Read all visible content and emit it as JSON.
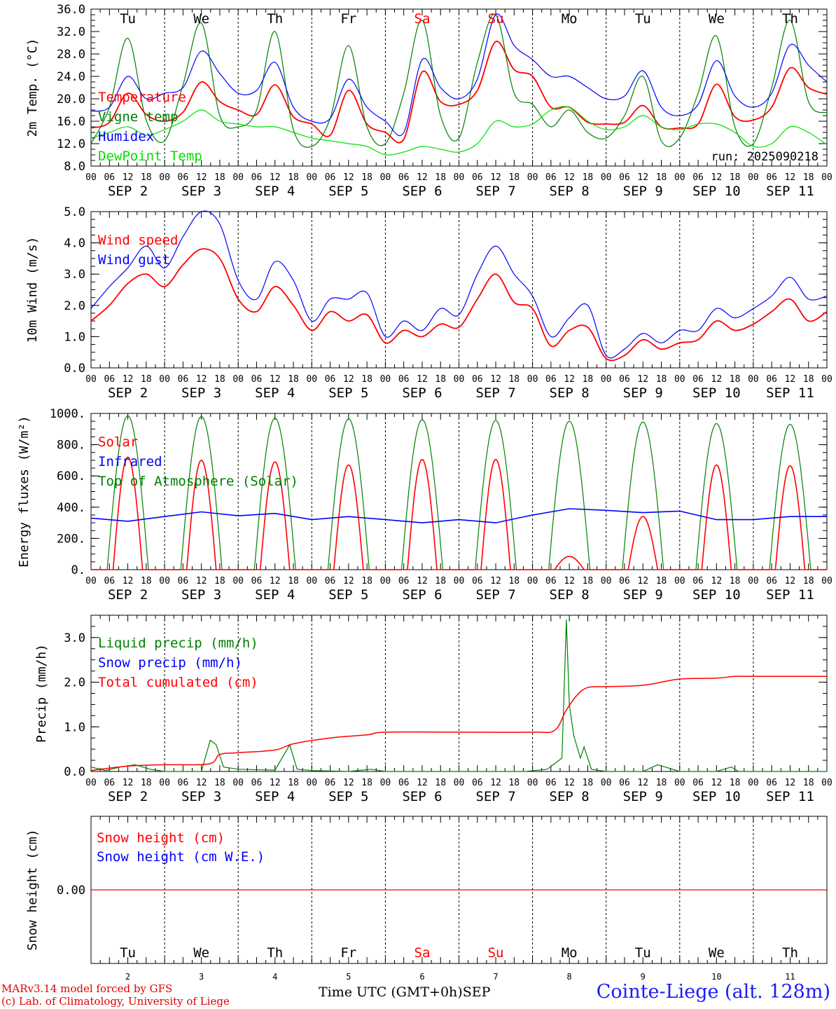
{
  "days": {
    "weekdays": [
      "Tu",
      "We",
      "Th",
      "Fr",
      "Sa",
      "Su",
      "Mo",
      "Tu",
      "We",
      "Th"
    ],
    "weekend_flags": [
      false,
      false,
      false,
      false,
      true,
      true,
      false,
      false,
      false,
      false
    ],
    "day_numbers": [
      "2",
      "3",
      "4",
      "5",
      "6",
      "7",
      "8",
      "9",
      "10",
      "11"
    ],
    "month_day_labels": [
      "SEP  2",
      "SEP  3",
      "SEP  4",
      "SEP  5",
      "SEP  6",
      "SEP  7",
      "SEP  8",
      "SEP  9",
      "SEP 10",
      "SEP 11"
    ],
    "hour_ticks": [
      "00",
      "06",
      "12",
      "18"
    ],
    "end_tick": "00"
  },
  "colors": {
    "red": "#ff0000",
    "blue": "#0000ff",
    "green": "#008000",
    "lightgreen": "#00e000",
    "weekend": "#ff0000"
  },
  "chart_data": [
    {
      "id": "temperature",
      "type": "line",
      "ylabel": "2m Temp. (°C)",
      "ylim": [
        8.0,
        36.0
      ],
      "yticks": [
        "8.0",
        "12.0",
        "16.0",
        "20.0",
        "24.0",
        "28.0",
        "32.0",
        "36.0"
      ],
      "run_label": "run: 2025090218",
      "series": [
        {
          "name": "Temperature",
          "color": "red",
          "x": [
            0,
            0.25,
            0.5,
            0.75,
            1,
            1.25,
            1.5,
            1.75,
            2,
            2.25,
            2.5,
            2.75,
            3,
            3.25,
            3.5,
            3.75,
            4,
            4.25,
            4.5,
            4.75,
            5,
            5.25,
            5.5,
            5.75,
            6,
            6.25,
            6.5,
            6.75,
            7,
            7.25,
            7.5,
            7.75,
            8,
            8.25,
            8.5,
            8.75,
            9,
            9.25,
            9.5,
            9.75,
            10
          ],
          "y": [
            14.8,
            15.8,
            21.0,
            17.2,
            16.0,
            17.6,
            23.0,
            19.5,
            18.0,
            17.2,
            22.5,
            16.8,
            15.5,
            13.5,
            21.5,
            15.5,
            14.0,
            12.8,
            24.8,
            19.5,
            19.0,
            21.5,
            30.2,
            25.2,
            24.0,
            18.5,
            18.5,
            15.8,
            15.5,
            15.8,
            18.8,
            15.0,
            14.8,
            15.5,
            22.6,
            16.8,
            16.2,
            18.5,
            25.5,
            22.0,
            20.8
          ]
        },
        {
          "name": "Vigne temp",
          "color": "green",
          "x": [
            0,
            0.25,
            0.5,
            0.75,
            1,
            1.25,
            1.5,
            1.75,
            2,
            2.25,
            2.5,
            2.75,
            3,
            3.25,
            3.5,
            3.75,
            4,
            4.25,
            4.5,
            4.75,
            5,
            5.25,
            5.5,
            5.75,
            6,
            6.25,
            6.5,
            6.75,
            7,
            7.25,
            7.5,
            7.75,
            8,
            8.25,
            8.5,
            8.75,
            9,
            9.25,
            9.5,
            9.75,
            10
          ],
          "y": [
            12.0,
            18.5,
            30.8,
            16.2,
            12.5,
            22.5,
            33.5,
            17.0,
            15.0,
            18.0,
            32.0,
            14.5,
            11.5,
            16.5,
            29.5,
            15.0,
            12.0,
            21.0,
            34.0,
            17.0,
            13.0,
            26.5,
            35.0,
            21.0,
            19.0,
            15.0,
            18.0,
            14.0,
            13.0,
            17.0,
            24.0,
            12.5,
            13.0,
            21.0,
            31.2,
            15.0,
            12.0,
            22.0,
            34.0,
            19.5,
            17.5
          ]
        },
        {
          "name": "Humidex",
          "color": "blue",
          "x": [
            0,
            0.25,
            0.5,
            0.75,
            1,
            1.25,
            1.5,
            1.75,
            2,
            2.25,
            2.5,
            2.75,
            3,
            3.25,
            3.5,
            3.75,
            4,
            4.25,
            4.5,
            4.75,
            5,
            5.25,
            5.5,
            5.75,
            6,
            6.25,
            6.5,
            6.75,
            7,
            7.25,
            7.5,
            7.75,
            8,
            8.25,
            8.5,
            8.75,
            9,
            9.25,
            9.5,
            9.75,
            10
          ],
          "y": [
            17.8,
            18.5,
            24.0,
            20.0,
            21.0,
            22.0,
            28.5,
            24.5,
            21.0,
            21.5,
            26.5,
            18.5,
            16.0,
            16.5,
            23.5,
            18.5,
            16.0,
            14.0,
            27.0,
            22.0,
            20.0,
            23.5,
            35.0,
            29.5,
            27.0,
            24.0,
            24.0,
            22.0,
            20.0,
            20.5,
            25.0,
            18.5,
            17.0,
            19.0,
            26.8,
            20.5,
            18.5,
            21.0,
            29.6,
            26.0,
            23.0
          ]
        },
        {
          "name": "DewPoint Temp",
          "color": "lightgreen",
          "x": [
            0,
            0.25,
            0.5,
            0.75,
            1,
            1.25,
            1.5,
            1.75,
            2,
            2.25,
            2.5,
            2.75,
            3,
            3.25,
            3.5,
            3.75,
            4,
            4.25,
            4.5,
            4.75,
            5,
            5.25,
            5.5,
            5.75,
            6,
            6.25,
            6.5,
            6.75,
            7,
            7.25,
            7.5,
            7.75,
            8,
            8.25,
            8.5,
            8.75,
            9,
            9.25,
            9.5,
            9.75,
            10
          ],
          "y": [
            13.0,
            14.0,
            15.0,
            13.5,
            14.5,
            16.0,
            18.0,
            16.0,
            15.5,
            15.0,
            15.0,
            14.0,
            13.0,
            12.5,
            12.0,
            11.5,
            10.0,
            10.5,
            11.5,
            11.0,
            10.5,
            12.0,
            16.0,
            15.0,
            15.5,
            18.0,
            18.5,
            16.0,
            14.5,
            15.0,
            17.0,
            15.0,
            14.5,
            15.5,
            15.5,
            14.0,
            11.5,
            12.0,
            15.0,
            14.0,
            11.8
          ]
        }
      ]
    },
    {
      "id": "wind",
      "type": "line",
      "ylabel": "10m Wind (m/s)",
      "ylim": [
        0.0,
        5.0
      ],
      "yticks": [
        "0.0",
        "1.0",
        "2.0",
        "3.0",
        "4.0",
        "5.0"
      ],
      "series": [
        {
          "name": "Wind speed",
          "color": "red",
          "x": [
            0,
            0.25,
            0.5,
            0.75,
            1,
            1.25,
            1.5,
            1.75,
            2,
            2.25,
            2.5,
            2.75,
            3,
            3.25,
            3.5,
            3.75,
            4,
            4.25,
            4.5,
            4.75,
            5,
            5.25,
            5.5,
            5.75,
            6,
            6.25,
            6.5,
            6.75,
            7,
            7.25,
            7.5,
            7.75,
            8,
            8.25,
            8.5,
            8.75,
            9,
            9.25,
            9.5,
            9.75,
            10
          ],
          "y": [
            1.5,
            2.0,
            2.7,
            3.0,
            2.6,
            3.3,
            3.8,
            3.5,
            2.2,
            1.8,
            2.6,
            2.0,
            1.2,
            1.8,
            1.5,
            1.7,
            0.8,
            1.2,
            1.0,
            1.4,
            1.3,
            2.2,
            3.0,
            2.1,
            1.9,
            0.7,
            1.2,
            1.3,
            0.3,
            0.4,
            0.9,
            0.6,
            0.8,
            0.9,
            1.5,
            1.2,
            1.4,
            1.8,
            2.2,
            1.5,
            1.8
          ]
        },
        {
          "name": "Wind gust",
          "color": "blue",
          "x": [
            0,
            0.25,
            0.5,
            0.75,
            1,
            1.25,
            1.5,
            1.75,
            2,
            2.25,
            2.5,
            2.75,
            3,
            3.25,
            3.5,
            3.75,
            4,
            4.25,
            4.5,
            4.75,
            5,
            5.25,
            5.5,
            5.75,
            6,
            6.25,
            6.5,
            6.75,
            7,
            7.25,
            7.5,
            7.75,
            8,
            8.25,
            8.5,
            8.75,
            9,
            9.25,
            9.5,
            9.75,
            10
          ],
          "y": [
            1.9,
            2.6,
            3.2,
            3.9,
            3.2,
            4.2,
            5.0,
            4.6,
            2.8,
            2.2,
            3.4,
            2.8,
            1.5,
            2.2,
            2.2,
            2.4,
            1.0,
            1.5,
            1.2,
            1.9,
            1.7,
            3.0,
            3.9,
            3.0,
            2.3,
            1.0,
            1.6,
            2.0,
            0.4,
            0.6,
            1.1,
            0.8,
            1.2,
            1.2,
            1.9,
            1.6,
            1.9,
            2.3,
            2.9,
            2.2,
            2.3
          ]
        }
      ]
    },
    {
      "id": "energy",
      "type": "line",
      "ylabel": "Energy fluxes (W/m²)",
      "ylim": [
        0,
        1000
      ],
      "yticks": [
        "0.",
        "200.",
        "400.",
        "600.",
        "800.",
        "1000."
      ],
      "series": [
        {
          "name": "Solar",
          "color": "red",
          "peaks": [
            720,
            700,
            690,
            670,
            705,
            705,
            85,
            340,
            670,
            665
          ]
        },
        {
          "name": "Infrared",
          "color": "blue",
          "x": [
            0,
            0.5,
            1,
            1.5,
            2,
            2.5,
            3,
            3.5,
            4,
            4.5,
            5,
            5.5,
            6,
            6.5,
            7,
            7.5,
            8,
            8.5,
            9,
            9.5,
            10
          ],
          "y": [
            330,
            310,
            340,
            370,
            345,
            360,
            320,
            340,
            320,
            300,
            320,
            300,
            350,
            390,
            380,
            365,
            375,
            320,
            320,
            340,
            340
          ]
        },
        {
          "name": "Top of Atmosphere (Solar)",
          "color": "green",
          "peaks": [
            985,
            980,
            970,
            965,
            960,
            955,
            950,
            945,
            935,
            930
          ]
        }
      ]
    },
    {
      "id": "precip",
      "type": "line",
      "ylabel": "Precip (mm/h)",
      "ylim": [
        0.0,
        3.5
      ],
      "yticks": [
        "0.0",
        "1.0",
        "2.0",
        "3.0"
      ],
      "series": [
        {
          "name": "Liquid precip (mm/h)",
          "color": "green",
          "x": [
            0,
            0.2,
            0.4,
            0.6,
            0.8,
            1,
            1.5,
            1.62,
            1.7,
            1.8,
            2,
            2.5,
            2.7,
            2.8,
            3,
            3.5,
            3.8,
            4,
            4.5,
            5,
            5.9,
            6.2,
            6.4,
            6.46,
            6.5,
            6.56,
            6.65,
            6.7,
            6.8,
            7,
            7.5,
            7.7,
            7.8,
            8,
            8.5,
            8.7,
            8.8,
            9,
            9.5,
            10
          ],
          "y": [
            0.1,
            0.02,
            0.1,
            0.15,
            0.05,
            0.0,
            0.0,
            0.7,
            0.6,
            0.1,
            0.05,
            0.03,
            0.6,
            0.05,
            0.02,
            0.0,
            0.05,
            0.0,
            0.0,
            0.0,
            0.0,
            0.05,
            0.3,
            3.4,
            1.5,
            0.8,
            0.3,
            0.55,
            0.05,
            0.0,
            0.0,
            0.15,
            0.1,
            0.0,
            0.0,
            0.1,
            0.0,
            0.0,
            0.0,
            0.0
          ]
        },
        {
          "name": "Snow precip (mm/h)",
          "color": "blue",
          "x": [
            0,
            10
          ],
          "y": [
            0,
            0
          ]
        },
        {
          "name": "Total cumulated (cm)",
          "color": "red",
          "x": [
            0,
            0.5,
            1,
            1.6,
            1.75,
            2,
            2.5,
            2.75,
            3.25,
            3.75,
            4,
            5,
            6,
            6.3,
            6.45,
            6.6,
            6.75,
            7,
            7.5,
            8,
            8.5,
            8.75,
            9,
            10
          ],
          "y": [
            0.02,
            0.12,
            0.15,
            0.17,
            0.38,
            0.42,
            0.48,
            0.62,
            0.75,
            0.82,
            0.88,
            0.88,
            0.88,
            0.92,
            1.35,
            1.7,
            1.88,
            1.9,
            1.93,
            2.07,
            2.09,
            2.13,
            2.13,
            2.13
          ]
        }
      ]
    },
    {
      "id": "snow",
      "type": "line",
      "ylabel": "Snow height (cm)",
      "yticks": [
        "0.00"
      ],
      "series": [
        {
          "name": "Snow height (cm)",
          "color": "red",
          "x": [
            0,
            10
          ],
          "y": [
            0,
            0
          ]
        },
        {
          "name": "Snow height (cm W.E.)",
          "color": "blue",
          "x": [
            0,
            10
          ],
          "y": [
            0,
            0
          ]
        }
      ]
    }
  ],
  "footer": {
    "credit_line1": "MARv3.14 model forced by GFS",
    "credit_line2": "(c) Lab. of Climatology, University of Liege",
    "xaxis_title": "Time UTC (GMT+0h)",
    "month": "SEP",
    "station": "Cointe-Liege (alt. 128m)"
  }
}
